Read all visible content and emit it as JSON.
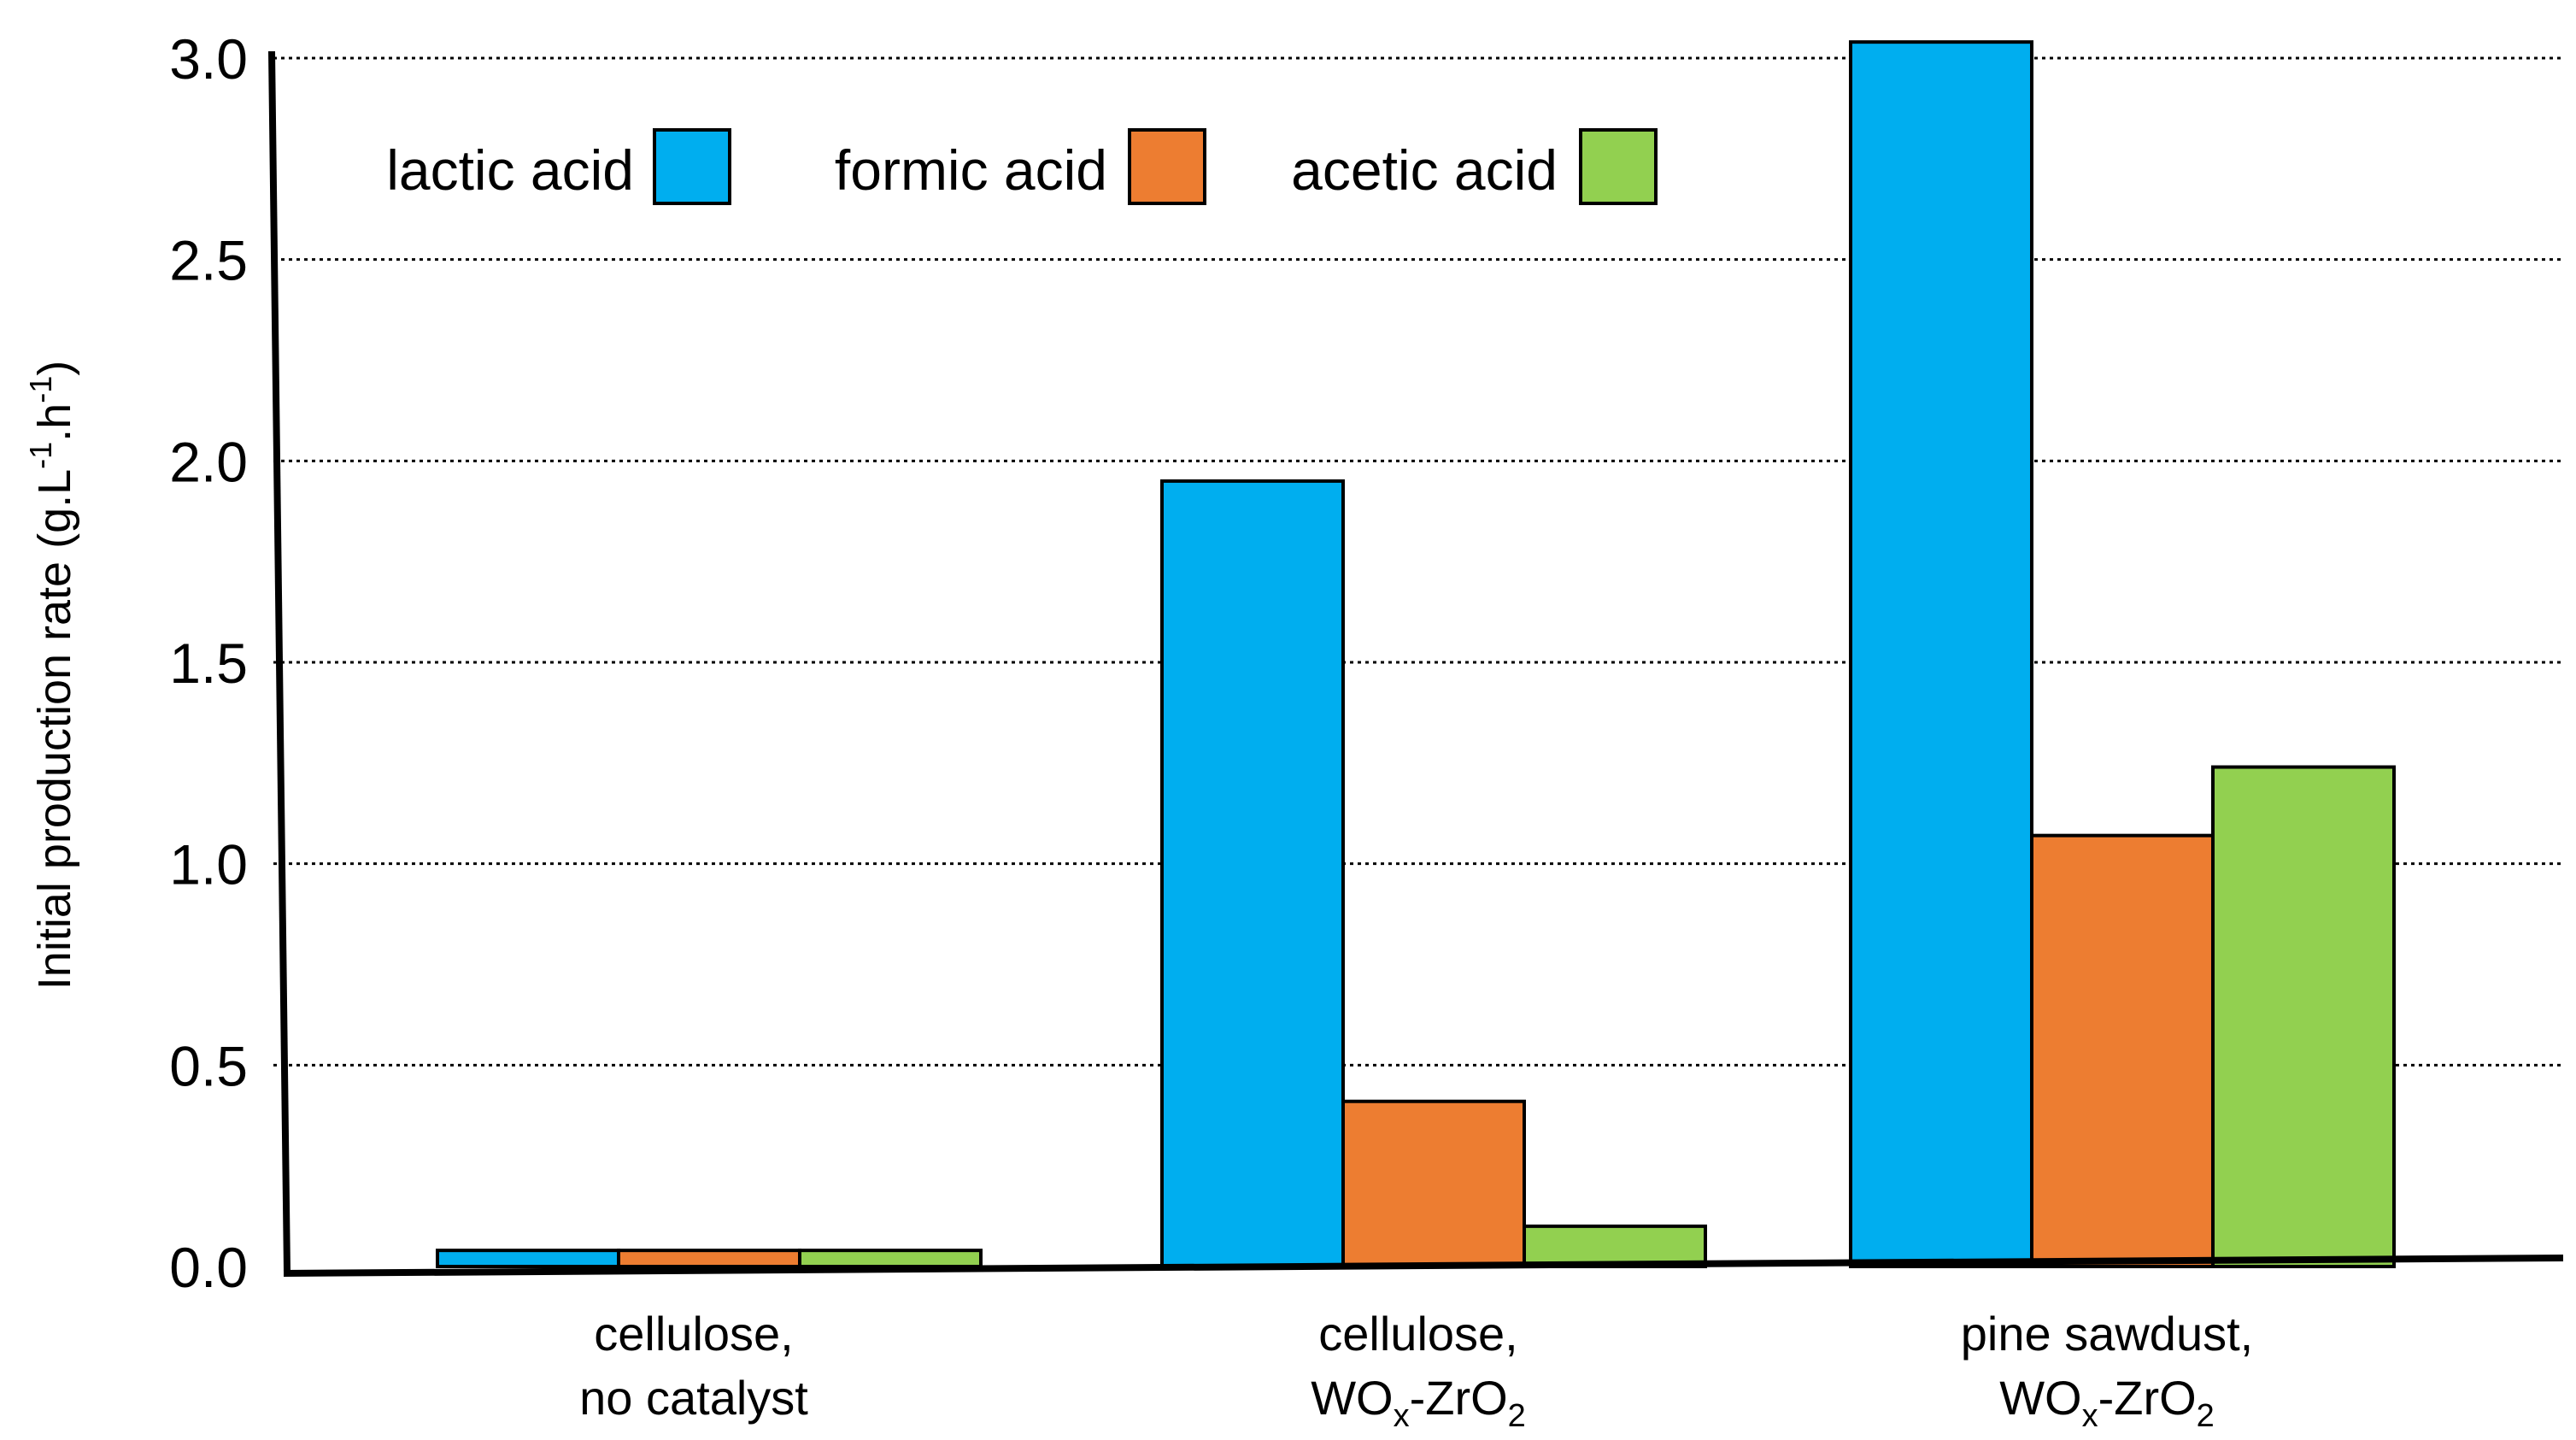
{
  "chart_data": {
    "type": "bar",
    "ylabel": "Initial production rate (g.L-1.h-1)",
    "ylabel_parts": {
      "main": "Initial production rate (g.L",
      "sup1": "-1",
      "mid": ".h",
      "sup2": "-1",
      "end": ")"
    },
    "ylim": [
      0,
      3.0
    ],
    "y_ticks": [
      "0.0",
      "0.5",
      "1.0",
      "1.5",
      "2.0",
      "2.5",
      "3.0"
    ],
    "grid": "horizontal dotted",
    "legend_position": "top-left",
    "categories": [
      {
        "line1": "cellulose,",
        "line2": "no catalyst"
      },
      {
        "line1": "cellulose,",
        "line2_parts": [
          "WO",
          "x",
          "-ZrO",
          "2"
        ]
      },
      {
        "line1": "pine sawdust,",
        "line2_parts": [
          "WO",
          "x",
          "-ZrO",
          "2"
        ]
      }
    ],
    "series": [
      {
        "name": "lactic acid",
        "color": "#00AEEF",
        "values": [
          0.04,
          1.95,
          3.04
        ]
      },
      {
        "name": "formic acid",
        "color": "#ED7D31",
        "values": [
          0.04,
          0.41,
          1.07
        ]
      },
      {
        "name": "acetic acid",
        "color": "#92D050",
        "values": [
          0.04,
          0.1,
          1.24
        ]
      }
    ]
  }
}
